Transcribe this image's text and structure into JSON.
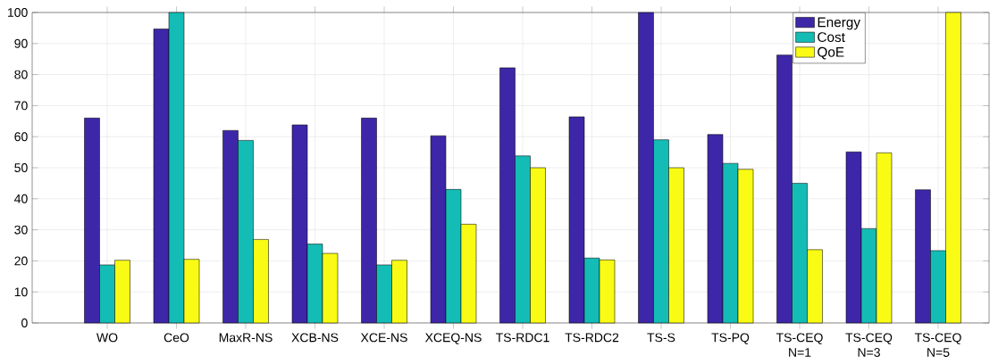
{
  "chart_data": {
    "type": "bar",
    "categories": [
      "WO",
      "CeO",
      "MaxR-NS",
      "XCB-NS",
      "XCE-NS",
      "XCEQ-NS",
      "TS-RDC1",
      "TS-RDC2",
      "TS-S",
      "TS-PQ",
      "TS-CEQ N=1",
      "TS-CEQ N=3",
      "TS-CEQ N=5"
    ],
    "series": [
      {
        "name": "Energy",
        "color": "#3e26a8",
        "values": [
          66,
          94.7,
          62,
          63.8,
          66,
          60.3,
          82.2,
          66.4,
          100,
          60.7,
          86.3,
          55.1,
          42.9
        ]
      },
      {
        "name": "Cost",
        "color": "#13bdb6",
        "values": [
          18.7,
          100,
          58.8,
          25.4,
          18.7,
          43,
          53.8,
          20.9,
          59,
          51.4,
          45,
          30.4,
          23.3
        ]
      },
      {
        "name": "QoE",
        "color": "#f9fb14",
        "values": [
          20.2,
          20.5,
          26.9,
          22.4,
          20.2,
          31.8,
          50,
          20.3,
          50,
          49.5,
          23.6,
          54.8,
          100
        ]
      }
    ],
    "ylim": [
      0,
      100
    ],
    "yticks": [
      0,
      10,
      20,
      30,
      40,
      50,
      60,
      70,
      80,
      90,
      100
    ],
    "grid": true,
    "legend": "top right"
  }
}
